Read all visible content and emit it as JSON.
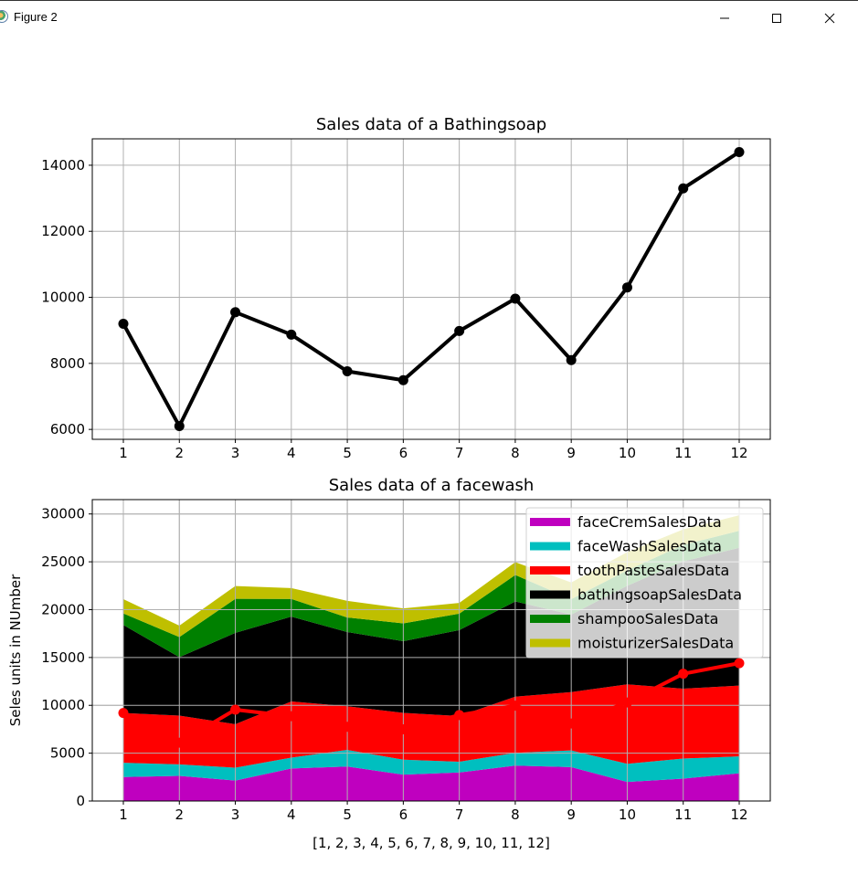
{
  "window": {
    "title": "Figure 2",
    "controls": {
      "minimize": "minimize",
      "maximize": "maximize",
      "close": "close"
    }
  },
  "chart_data": [
    {
      "type": "line",
      "title": "Sales data of  a Bathingsoap",
      "xlabel": "",
      "ylabel": "",
      "x": [
        1,
        2,
        3,
        4,
        5,
        6,
        7,
        8,
        9,
        10,
        11,
        12
      ],
      "xticks": [
        "1",
        "2",
        "3",
        "4",
        "5",
        "6",
        "7",
        "8",
        "9",
        "10",
        "11",
        "12"
      ],
      "yticks": [
        "6000",
        "8000",
        "10000",
        "12000",
        "14000"
      ],
      "ylim": [
        5700,
        14800
      ],
      "grid": true,
      "series": [
        {
          "name": "bathingsoapSalesData",
          "color": "#000000",
          "values": [
            9200,
            6100,
            9550,
            8870,
            7760,
            7490,
            8980,
            9960,
            8100,
            10300,
            13300,
            14400
          ]
        }
      ]
    },
    {
      "type": "area",
      "stacked": true,
      "title": "Sales data of  a facewash",
      "xlabel": "[1, 2, 3, 4, 5, 6, 7, 8, 9, 10, 11, 12]",
      "ylabel": "Seles units in NUmber",
      "x": [
        1,
        2,
        3,
        4,
        5,
        6,
        7,
        8,
        9,
        10,
        11,
        12
      ],
      "xticks": [
        "1",
        "2",
        "3",
        "4",
        "5",
        "6",
        "7",
        "8",
        "9",
        "10",
        "11",
        "12"
      ],
      "yticks": [
        "0",
        "5000",
        "10000",
        "15000",
        "20000",
        "25000",
        "30000"
      ],
      "ylim": [
        0,
        31500
      ],
      "grid": true,
      "legend_position": "upper right",
      "series": [
        {
          "name": "faceCremSalesData",
          "color": "#bf00bf",
          "values": [
            2500,
            2630,
            2140,
            3400,
            3600,
            2760,
            2980,
            3700,
            3540,
            1990,
            2340,
            2900
          ]
        },
        {
          "name": "faceWashSalesData",
          "color": "#00bfbf",
          "values": [
            1500,
            1200,
            1340,
            1130,
            1740,
            1560,
            1120,
            1340,
            1740,
            1900,
            2100,
            1760
          ]
        },
        {
          "name": "toothPasteSalesData",
          "color": "#ff0000",
          "values": [
            5200,
            5100,
            4550,
            5870,
            4560,
            4890,
            4780,
            5860,
            6100,
            8300,
            7300,
            7400
          ]
        },
        {
          "name": "bathingsoapSalesData",
          "color": "#000000",
          "values": [
            9200,
            6100,
            9550,
            8870,
            7760,
            7490,
            8980,
            9960,
            8100,
            10300,
            13300,
            14400
          ]
        },
        {
          "name": "shampooSalesData",
          "color": "#008000",
          "values": [
            1200,
            2100,
            3550,
            1850,
            1520,
            1870,
            1720,
            2760,
            1620,
            1620,
            1720,
            1780
          ]
        },
        {
          "name": "moisturizerSalesData",
          "color": "#bfbf00",
          "values": [
            1500,
            1200,
            1340,
            1130,
            1740,
            1560,
            1120,
            1340,
            1740,
            1900,
            1620,
            1620
          ]
        }
      ],
      "overlay_line": {
        "name": "bathingsoapSalesData (line)",
        "color": "#ff0000",
        "values": [
          9200,
          6100,
          9550,
          8870,
          7760,
          7490,
          8980,
          9960,
          8100,
          10300,
          13300,
          14400
        ]
      }
    }
  ]
}
